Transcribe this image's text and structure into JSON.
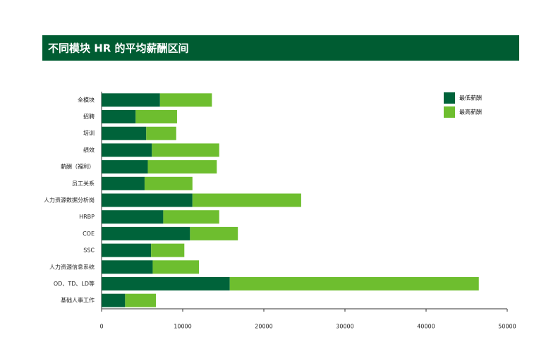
{
  "chart_data": {
    "type": "stacked_barh",
    "title": "不同模块 HR 的平均薪酬区间",
    "categories": [
      "全模块",
      "招聘",
      "培训",
      "绩效",
      "薪酬（福利）",
      "员工关系",
      "人力资源数据分析岗",
      "HRBP",
      "COE",
      "SSC",
      "人力资源信息系统",
      "OD、TD、LD等",
      "基础人事工作"
    ],
    "series": [
      {
        "name": "最低薪酬",
        "color": "#00633a",
        "values": [
          7200,
          4200,
          5500,
          6200,
          5700,
          5300,
          11200,
          7600,
          10900,
          6100,
          6300,
          15800,
          2900
        ]
      },
      {
        "name": "最高薪酬",
        "color": "#6ebe2f",
        "values": [
          6400,
          5100,
          3700,
          8300,
          8500,
          5900,
          13400,
          6900,
          5900,
          4100,
          5700,
          30700,
          3800
        ]
      }
    ],
    "xlim": [
      0,
      50000
    ],
    "xticks": [
      0,
      10000,
      20000,
      30000,
      40000,
      50000
    ],
    "legend": "upper right"
  }
}
